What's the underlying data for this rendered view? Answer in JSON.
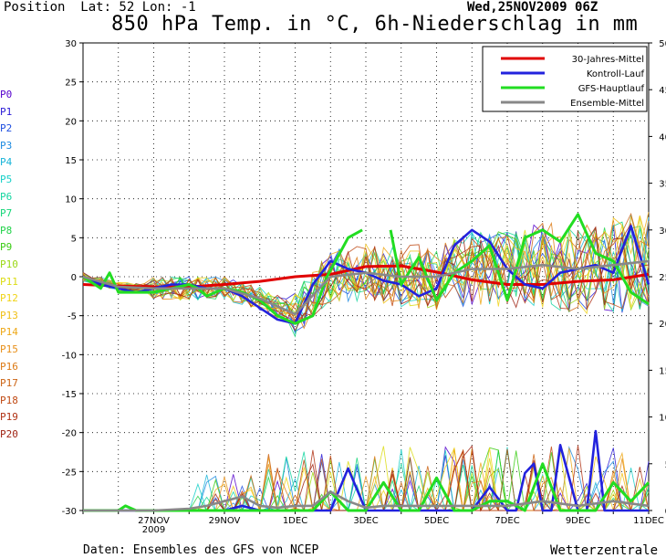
{
  "header": {
    "position": "Position  Lat: 52 Lon: -1",
    "run": "Wed,25NOV2009 06Z",
    "title": "850 hPa Temp. in °C, 6h-Niederschlag in mm"
  },
  "footer": {
    "source": "Daten: Ensembles des GFS von NCEP",
    "brand": "Wetterzentrale"
  },
  "members": [
    {
      "label": "P0",
      "color": "#5500cc"
    },
    {
      "label": "P1",
      "color": "#2a1ad6"
    },
    {
      "label": "P2",
      "color": "#1f4fe0"
    },
    {
      "label": "P3",
      "color": "#1d8ae0"
    },
    {
      "label": "P4",
      "color": "#18b4d8"
    },
    {
      "label": "P5",
      "color": "#17d0c8"
    },
    {
      "label": "P6",
      "color": "#14d6a0"
    },
    {
      "label": "P7",
      "color": "#14d678"
    },
    {
      "label": "P8",
      "color": "#22d24a"
    },
    {
      "label": "P9",
      "color": "#3acc14"
    },
    {
      "label": "P10",
      "color": "#9ad814"
    },
    {
      "label": "P11",
      "color": "#dcdc14"
    },
    {
      "label": "P12",
      "color": "#f0d418"
    },
    {
      "label": "P13",
      "color": "#f0c018"
    },
    {
      "label": "P14",
      "color": "#eea818"
    },
    {
      "label": "P15",
      "color": "#e8901a"
    },
    {
      "label": "P16",
      "color": "#dc7a14"
    },
    {
      "label": "P17",
      "color": "#cc6414"
    },
    {
      "label": "P18",
      "color": "#c04a14"
    },
    {
      "label": "P19",
      "color": "#b03214"
    },
    {
      "label": "P20",
      "color": "#a02414"
    }
  ],
  "chart_data": {
    "type": "line",
    "title": "850 hPa Temp. in °C, 6h-Niederschlag in mm",
    "x_tick_labels": [
      "27NOV",
      "29NOV",
      "1DEC",
      "3DEC",
      "5DEC",
      "7DEC",
      "9DEC",
      "11DEC"
    ],
    "x_tick_days": [
      2,
      4,
      6,
      8,
      10,
      12,
      14,
      16
    ],
    "x_sublabel": {
      "text": "2009",
      "day": 2
    },
    "x_range_days": [
      0,
      16
    ],
    "y_left_range": [
      -30,
      30
    ],
    "y_left_ticks": [
      -30,
      -25,
      -20,
      -15,
      -10,
      -5,
      0,
      5,
      10,
      15,
      20,
      25,
      30
    ],
    "y_right_range": [
      0,
      50
    ],
    "y_right_ticks": [
      0,
      5,
      10,
      15,
      20,
      25,
      30,
      35,
      40,
      45,
      50
    ],
    "grid": true,
    "legend_position": "top-right",
    "legend": [
      {
        "name": "30-Jahres-Mittel",
        "color": "#e00000"
      },
      {
        "name": "Kontroll-Lauf",
        "color": "#2222dd"
      },
      {
        "name": "GFS-Hauptlauf",
        "color": "#22dd22"
      },
      {
        "name": "Ensemble-Mittel",
        "color": "#888888"
      }
    ],
    "series": [
      {
        "name": "30-Jahres-Mittel",
        "axis": "temperature",
        "color": "#e00000",
        "x": [
          0,
          1,
          2,
          3,
          4,
          5,
          6,
          7,
          8,
          9,
          10,
          11,
          12,
          13,
          14,
          15,
          16
        ],
        "y": [
          -1.0,
          -1.2,
          -1.3,
          -1.3,
          -1.0,
          -0.6,
          0.0,
          0.3,
          1.3,
          1.4,
          0.6,
          -0.4,
          -1.0,
          -1.0,
          -0.6,
          -0.4,
          0.3
        ]
      },
      {
        "name": "Kontroll-Lauf",
        "axis": "temperature",
        "color": "#2222dd",
        "x": [
          0,
          0.5,
          1,
          1.5,
          2,
          2.5,
          3,
          3.5,
          4,
          4.5,
          5,
          5.5,
          6,
          6.5,
          7,
          7.5,
          8,
          8.5,
          9,
          9.5,
          10,
          10.5,
          11,
          11.5,
          12,
          12.5,
          13,
          13.5,
          14,
          14.5,
          15,
          15.5,
          16
        ],
        "y": [
          0.0,
          -1.0,
          -1.5,
          -2.0,
          -1.5,
          -1.0,
          -1.0,
          -1.5,
          -1.5,
          -2.5,
          -4.0,
          -5.5,
          -6.0,
          -1.0,
          2.0,
          1.0,
          0.5,
          -0.5,
          -1.0,
          -2.5,
          -1.5,
          4.0,
          6.0,
          4.5,
          1.0,
          -1.0,
          -1.5,
          0.5,
          1.0,
          1.5,
          0.5,
          6.5,
          -1.0
        ]
      },
      {
        "name": "GFS-Hauptlauf",
        "axis": "temperature",
        "color": "#22dd22",
        "x": [
          0,
          0.5,
          0.75,
          1,
          1.5,
          2,
          2.5,
          3,
          3.25,
          3.5,
          4,
          4.5,
          5,
          5.5,
          6,
          6.5,
          6.9,
          7.5,
          7.9,
          null,
          8.7,
          9.0,
          9.5,
          10,
          10.5,
          11,
          11.5,
          12,
          12.5,
          13,
          13.5,
          14,
          14.5,
          15,
          15.5,
          16
        ],
        "y": [
          0.0,
          -1.5,
          0.5,
          -2.0,
          -2.0,
          -2.0,
          -1.5,
          -1.0,
          -1.5,
          -2.5,
          -1.5,
          -2.0,
          -3.0,
          -5.0,
          -6.0,
          -5.0,
          0.0,
          5.0,
          6.0,
          null,
          6.0,
          -1.0,
          2.5,
          -3.0,
          0.5,
          2.0,
          4.0,
          -3.0,
          5.0,
          6.0,
          4.5,
          8.0,
          3.0,
          2.0,
          -2.0,
          -3.5
        ]
      },
      {
        "name": "Ensemble-Mittel",
        "axis": "temperature",
        "color": "#888888",
        "x": [
          0,
          1,
          2,
          3,
          4,
          5,
          6,
          7,
          8,
          9,
          10,
          11,
          12,
          13,
          14,
          15,
          16
        ],
        "y": [
          0.0,
          -1.3,
          -1.5,
          -1.5,
          -1.5,
          -2.8,
          -4.8,
          0.0,
          0.5,
          0.0,
          0.0,
          1.0,
          1.0,
          1.5,
          1.0,
          1.5,
          2.0
        ]
      },
      {
        "name": "Kontroll-Lauf",
        "axis": "precipitation",
        "color": "#2222dd",
        "x": [
          0,
          2,
          4,
          4.5,
          5,
          6,
          6.5,
          7,
          7.5,
          8,
          9,
          10,
          10.5,
          11,
          11.5,
          12,
          12.25,
          12.5,
          12.75,
          13,
          13.25,
          13.5,
          14,
          14.25,
          14.5,
          14.75,
          15,
          15.5,
          16
        ],
        "y": [
          0,
          0,
          0,
          0.5,
          0,
          0,
          0,
          0,
          4.5,
          0,
          0,
          0,
          0,
          0,
          2.5,
          0,
          0,
          4.0,
          5.0,
          0,
          0,
          7.0,
          0,
          0,
          8.5,
          0,
          0,
          0,
          0
        ]
      },
      {
        "name": "GFS-Hauptlauf",
        "axis": "precipitation",
        "color": "#22dd22",
        "x": [
          0,
          1,
          1.2,
          1.5,
          2,
          3,
          4,
          4.5,
          5,
          6,
          6.5,
          7,
          7.5,
          8,
          8.5,
          9,
          9.5,
          10,
          10.5,
          11,
          11.5,
          12,
          12.5,
          13,
          13.5,
          14,
          14.5,
          15,
          15.5,
          16
        ],
        "y": [
          0,
          0,
          0.5,
          0,
          0,
          0,
          0,
          0,
          0,
          0,
          0,
          2.0,
          0,
          0,
          3.0,
          0,
          0,
          3.5,
          0,
          0,
          1.0,
          1.0,
          0,
          5.0,
          0,
          0,
          0,
          3.0,
          1.0,
          3.0
        ]
      },
      {
        "name": "Ensemble-Mittel",
        "axis": "precipitation",
        "color": "#888888",
        "x": [
          0,
          2,
          3,
          3.5,
          4,
          4.5,
          5,
          5.5,
          6,
          6.5,
          7,
          7.5,
          8,
          8.5,
          9,
          10,
          11,
          12,
          13,
          14,
          15,
          16
        ],
        "y": [
          0,
          0,
          0.2,
          0.5,
          1.0,
          1.5,
          0.5,
          0.3,
          0.5,
          0.5,
          2.0,
          1.0,
          0.3,
          0.5,
          0.5,
          0.5,
          0.5,
          0.5,
          1.0,
          0.5,
          1.0,
          0.5
        ]
      }
    ]
  }
}
